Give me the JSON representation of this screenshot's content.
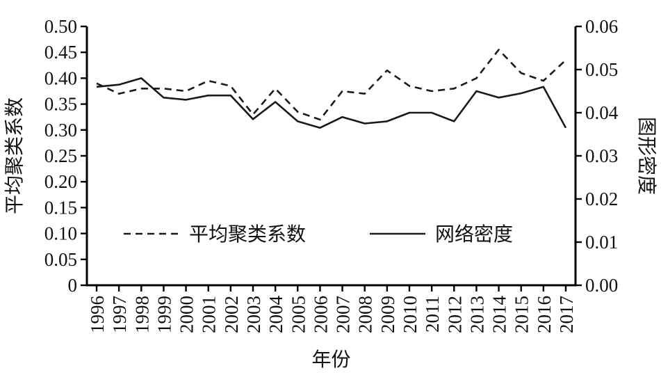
{
  "chart_data": {
    "type": "line",
    "x": [
      "1996",
      "1997",
      "1998",
      "1999",
      "2000",
      "2001",
      "2002",
      "2003",
      "2004",
      "2005",
      "2006",
      "2007",
      "2008",
      "2009",
      "2010",
      "2011",
      "2012",
      "2013",
      "2014",
      "2015",
      "2016",
      "2017"
    ],
    "xlabel": "年份",
    "grid": false,
    "legend_position": "inside-lower-center",
    "left_axis": {
      "label": "平均聚类系数",
      "min": 0,
      "max": 0.5,
      "step": 0.05,
      "tick_labels": [
        "0.50",
        "0.45",
        "0.40",
        "0.35",
        "0.30",
        "0.25",
        "0.20",
        "0.15",
        "0.10",
        "0.05",
        "0"
      ]
    },
    "right_axis": {
      "label": "图形密度",
      "min": 0,
      "max": 0.06,
      "step": 0.01,
      "tick_labels": [
        "0.06",
        "0.05",
        "0.04",
        "0.03",
        "0.02",
        "0.01",
        "0.00"
      ]
    },
    "series": [
      {
        "name": "平均聚类系数",
        "axis": "left",
        "line_style": "dashed",
        "color": "#1a1a1a",
        "values": [
          0.39,
          0.37,
          0.38,
          0.38,
          0.375,
          0.395,
          0.385,
          0.33,
          0.38,
          0.335,
          0.32,
          0.375,
          0.37,
          0.415,
          0.385,
          0.375,
          0.38,
          0.4,
          0.455,
          0.41,
          0.395,
          0.435
        ]
      },
      {
        "name": "网络密度",
        "axis": "right",
        "line_style": "solid",
        "color": "#1a1a1a",
        "values": [
          0.046,
          0.0465,
          0.048,
          0.0435,
          0.043,
          0.044,
          0.044,
          0.0385,
          0.0425,
          0.038,
          0.0365,
          0.039,
          0.0375,
          0.038,
          0.04,
          0.04,
          0.038,
          0.045,
          0.0435,
          0.0445,
          0.046,
          0.0365
        ]
      }
    ]
  }
}
